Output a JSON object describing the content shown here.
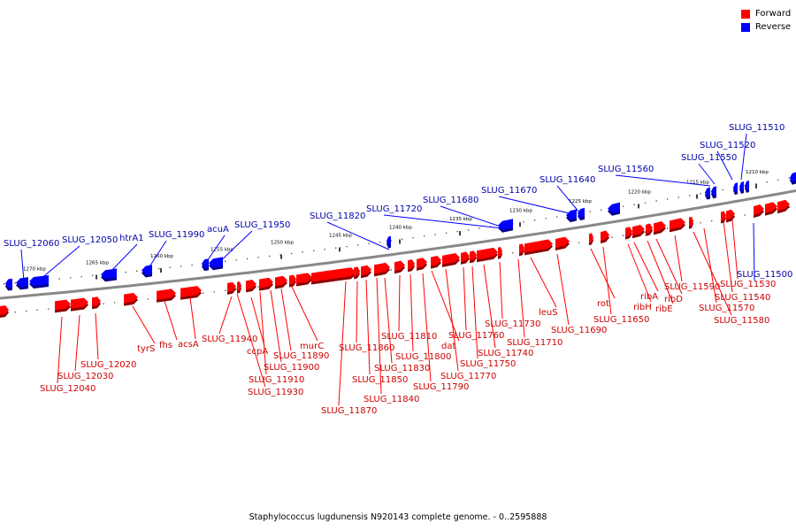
{
  "caption": "Staphylococcus lugdunensis N920143 complete genome. - 0..2595888",
  "legend": [
    {
      "label": "Forward",
      "color": "#ff0000"
    },
    {
      "label": "Reverse",
      "color": "#0000ff"
    }
  ],
  "colors": {
    "forward": "#ff0000",
    "forward_dark": "#8b0000",
    "reverse": "#0000ff",
    "reverse_dark": "#00008b",
    "forward_label": "#cc0000",
    "reverse_label": "#0000aa"
  },
  "scale_ticks": [
    "1270 kbp",
    "1265 kbp",
    "1260 kbp",
    "1255 kbp",
    "1250 kbp",
    "1245 kbp",
    "1240 kbp",
    "1235 kbp",
    "1230 kbp",
    "1225 kbp",
    "1220 kbp",
    "1215 kbp",
    "1210 kbp"
  ],
  "reverse_genes": [
    "SLUG_12060",
    "SLUG_12050",
    "htrA1",
    "SLUG_11990",
    "acuA",
    "SLUG_11950",
    "SLUG_11820",
    "SLUG_11720",
    "SLUG_11680",
    "SLUG_11670",
    "SLUG_11640",
    "SLUG_11560",
    "SLUG_11550",
    "SLUG_11520",
    "SLUG_11510",
    "SLUG_11500"
  ],
  "forward_genes": [
    "SLUG_12040",
    "SLUG_12030",
    "SLUG_12020",
    "tyrS",
    "fhs",
    "acsA",
    "SLUG_11940",
    "ccpA",
    "SLUG_11930",
    "SLUG_11910",
    "SLUG_11900",
    "SLUG_11890",
    "murC",
    "SLUG_11870",
    "SLUG_11860",
    "SLUG_11850",
    "SLUG_11840",
    "SLUG_11830",
    "SLUG_11810",
    "SLUG_11800",
    "SLUG_11790",
    "dat",
    "SLUG_11770",
    "SLUG_11760",
    "SLUG_11750",
    "SLUG_11740",
    "SLUG_11730",
    "SLUG_11710",
    "leuS",
    "SLUG_11690",
    "rot",
    "SLUG_11650",
    "ribH",
    "ribA",
    "ribE",
    "ribD",
    "SLUG_11590",
    "SLUG_11580",
    "SLUG_11570",
    "SLUG_11540",
    "SLUG_11530"
  ]
}
